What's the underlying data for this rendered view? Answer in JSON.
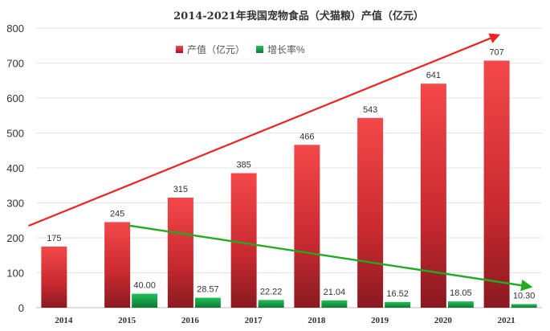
{
  "chart_data": {
    "type": "bar",
    "title": "2014-2021年我国宠物食品（犬猫粮）产值（亿元）",
    "categories": [
      "2014",
      "2015",
      "2016",
      "2017",
      "2018",
      "2019",
      "2020",
      "2021"
    ],
    "y_ticks": [
      "0",
      "100",
      "200",
      "300",
      "400",
      "500",
      "600",
      "700",
      "800"
    ],
    "ylim": [
      0,
      800
    ],
    "grid": true,
    "legend_position": "top-center",
    "series": [
      {
        "name": "产值（亿元）",
        "color": "#d9363a",
        "values": [
          175,
          245,
          315,
          385,
          466,
          543,
          641,
          707
        ],
        "labels": [
          "175",
          "245",
          "315",
          "385",
          "466",
          "543",
          "641",
          "707"
        ]
      },
      {
        "name": "增长率%",
        "color": "#1fa64a",
        "values": [
          null,
          40.0,
          28.57,
          22.22,
          21.04,
          16.52,
          18.05,
          10.3
        ],
        "labels": [
          "",
          "40.00",
          "28.57",
          "22.22",
          "21.04",
          "16.52",
          "18.05",
          "10.30"
        ]
      }
    ],
    "trend_arrows": [
      {
        "series": "产值（亿元）",
        "color": "#ee2222",
        "from": {
          "x": "2014",
          "y": 235
        },
        "to": {
          "x": "2021",
          "y": 780
        }
      },
      {
        "series": "增长率%",
        "color": "#22aa22",
        "from": {
          "x": "2015",
          "y": 235
        },
        "to": {
          "x": "2021",
          "y": 60
        }
      }
    ]
  }
}
